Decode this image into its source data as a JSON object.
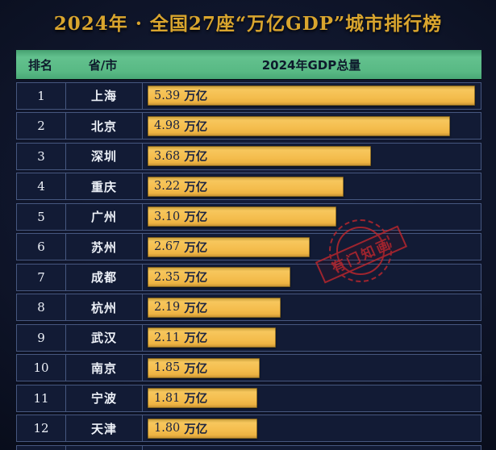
{
  "title": "2024年 · 全国27座“万亿GDP”城市排行榜",
  "watermark": "有门知画",
  "table": {
    "columns": [
      "排名",
      "省/市",
      "2024年GDP总量"
    ],
    "unit": "万亿",
    "max_value": 5.39,
    "rows": [
      {
        "rank": "1",
        "city": "上海",
        "value": "5.39"
      },
      {
        "rank": "2",
        "city": "北京",
        "value": "4.98"
      },
      {
        "rank": "3",
        "city": "深圳",
        "value": "3.68"
      },
      {
        "rank": "4",
        "city": "重庆",
        "value": "3.22"
      },
      {
        "rank": "5",
        "city": "广州",
        "value": "3.10"
      },
      {
        "rank": "6",
        "city": "苏州",
        "value": "2.67"
      },
      {
        "rank": "7",
        "city": "成都",
        "value": "2.35"
      },
      {
        "rank": "8",
        "city": "杭州",
        "value": "2.19"
      },
      {
        "rank": "9",
        "city": "武汉",
        "value": "2.11"
      },
      {
        "rank": "10",
        "city": "南京",
        "value": "1.85"
      },
      {
        "rank": "11",
        "city": "宁波",
        "value": "1.81"
      },
      {
        "rank": "12",
        "city": "天津",
        "value": "1.80"
      }
    ]
  },
  "chart_data": {
    "type": "bar",
    "orientation": "horizontal",
    "title": "2024年 · 全国27座“万亿GDP”城市排行榜",
    "categories": [
      "上海",
      "北京",
      "深圳",
      "重庆",
      "广州",
      "苏州",
      "成都",
      "杭州",
      "武汉",
      "南京",
      "宁波",
      "天津"
    ],
    "values": [
      5.39,
      4.98,
      3.68,
      3.22,
      3.1,
      2.67,
      2.35,
      2.19,
      2.11,
      1.85,
      1.81,
      1.8
    ],
    "value_labels": [
      "5.39 万亿",
      "4.98 万亿",
      "3.68 万亿",
      "3.22 万亿",
      "3.10 万亿",
      "2.67 万亿",
      "2.35 万亿",
      "2.19 万亿",
      "2.11 万亿",
      "1.85 万亿",
      "1.81 万亿",
      "1.80 万亿"
    ],
    "xlabel": "2024年GDP总量",
    "unit": "万亿",
    "xlim": [
      0,
      5.5
    ],
    "legend": "none",
    "grid": "off"
  },
  "colors": {
    "background": "#0e1428",
    "header_green": "#5abb86",
    "header_text": "#0e1a2c",
    "bar_orange": "#f3bb4c",
    "bar_text": "#1b2441",
    "title_gold": "#d9a52e",
    "row_bg": "#121b35",
    "row_border": "#46577f",
    "row_text": "#edf1f8",
    "watermark_red": "#c1272d"
  }
}
